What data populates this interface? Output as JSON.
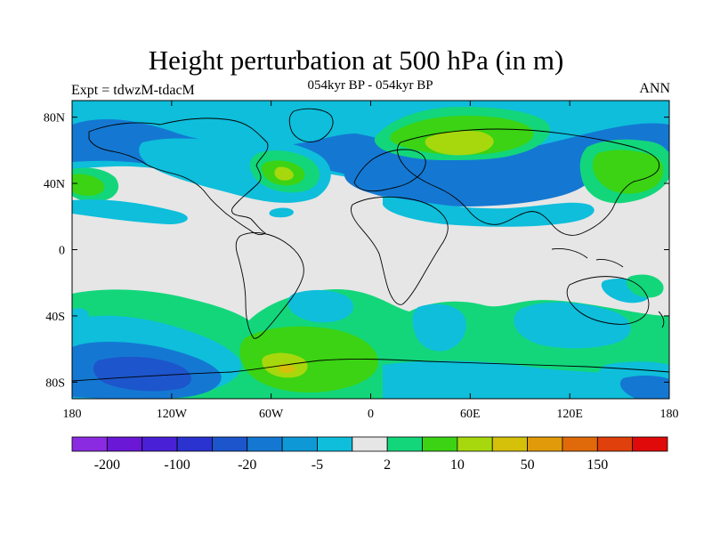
{
  "header": {
    "title": "Height perturbation at 500 hPa (in m)",
    "subtitle": "054kyr BP - 054kyr BP",
    "left_label": "Expt = tdwzM-tdacM",
    "right_label": "ANN"
  },
  "map": {
    "projection": "cylindrical-equidistant",
    "lat_ticks": [
      {
        "value": 80,
        "label": "80N"
      },
      {
        "value": 40,
        "label": "40N"
      },
      {
        "value": 0,
        "label": "0"
      },
      {
        "value": -40,
        "label": "40S"
      },
      {
        "value": -80,
        "label": "80S"
      }
    ],
    "lon_ticks": [
      {
        "value": -180,
        "label": "180"
      },
      {
        "value": -120,
        "label": "120W"
      },
      {
        "value": -60,
        "label": "60W"
      },
      {
        "value": 0,
        "label": "0"
      },
      {
        "value": 60,
        "label": "60E"
      },
      {
        "value": 120,
        "label": "120E"
      },
      {
        "value": 180,
        "label": "180"
      }
    ],
    "lat_range": [
      -90,
      90
    ],
    "lon_range": [
      -180,
      180
    ],
    "background_color": "#e6e6e6"
  },
  "colorbar": {
    "colors": [
      "#8a2be2",
      "#6a17d6",
      "#4a20d6",
      "#2a33d0",
      "#1d55cc",
      "#1478d2",
      "#0e99d6",
      "#0ebedb",
      "#e6e6e6",
      "#13d67b",
      "#3bd313",
      "#a6d80d",
      "#d5c00a",
      "#e09a0a",
      "#e06a0a",
      "#e0400b",
      "#e00a0a"
    ],
    "labels": [
      {
        "text": "-200",
        "boundary": 1
      },
      {
        "text": "-100",
        "boundary": 3
      },
      {
        "text": "-20",
        "boundary": 5
      },
      {
        "text": "-5",
        "boundary": 7
      },
      {
        "text": "2",
        "boundary": 9
      },
      {
        "text": "10",
        "boundary": 11
      },
      {
        "text": "50",
        "boundary": 13
      },
      {
        "text": "150",
        "boundary": 15
      }
    ]
  }
}
